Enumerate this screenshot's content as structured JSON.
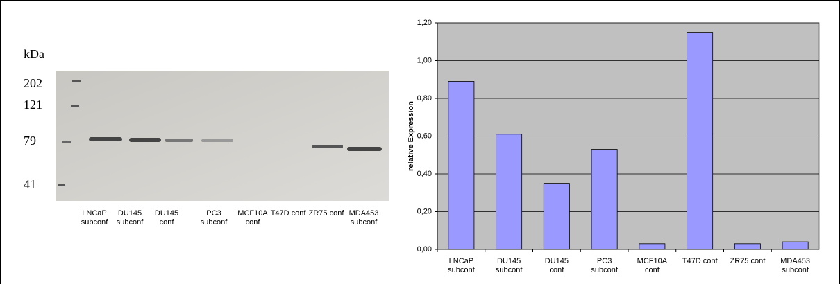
{
  "blot": {
    "unit": "kDa",
    "markers": [
      "202",
      "121",
      "79",
      "41"
    ],
    "lanes": [
      "LNCaP subconf",
      "DU145 subconf",
      "DU145 conf",
      "PC3 subconf",
      "MCF10A conf",
      "T47D conf",
      "ZR75 conf",
      "MDA453 subconf"
    ]
  },
  "chart_data": {
    "type": "bar",
    "y_label": "relative Expression",
    "categories": [
      "LNCaP subconf",
      "DU145 subconf",
      "DU145 conf",
      "PC3 subconf",
      "MCF10A conf",
      "T47D conf",
      "ZR75 conf",
      "MDA453 subconf"
    ],
    "values": [
      0.89,
      0.61,
      0.35,
      0.53,
      0.03,
      1.15,
      0.03,
      0.04
    ],
    "color": "#9999ff",
    "ylim": [
      0,
      1.2
    ],
    "yticks": [
      {
        "value": 0,
        "label": "0,00"
      },
      {
        "value": 0.2,
        "label": "0,20"
      },
      {
        "value": 0.4,
        "label": "0,40"
      },
      {
        "value": 0.6,
        "label": "0,60"
      },
      {
        "value": 0.8,
        "label": "0,80"
      },
      {
        "value": 1.0,
        "label": "1,00"
      },
      {
        "value": 1.2,
        "label": "1,20"
      }
    ],
    "grid": true
  }
}
